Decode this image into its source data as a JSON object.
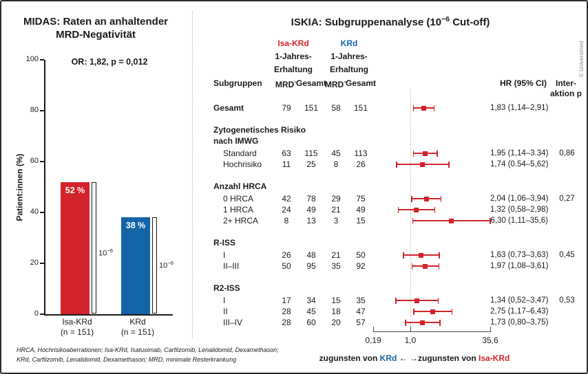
{
  "copyright": "© Universimed",
  "colors": {
    "red": "#d2232a",
    "blue": "#1464a8"
  },
  "left": {
    "title1": "MIDAS: Raten an anhaltender",
    "title2": "MRD-Negativität",
    "stat": "OR: 1,82, p = 0,012",
    "ylabel": "Patient:innen (%)"
  },
  "right": {
    "title_pre": "ISKIA: Subgruppenanalyse (10",
    "title_exp": "−6",
    "title_post": " Cut-off)",
    "arms": [
      {
        "name": "Isa-KRd",
        "sub1": "1-Jahres-",
        "sub2": "Erhaltung",
        "color": "#d2232a"
      },
      {
        "name": "KRd",
        "sub1": "1-Jahres-",
        "sub2": "Erhaltung",
        "color": "#1464a8"
      }
    ],
    "headers": {
      "subgroup": "Subgruppen",
      "mrd": "MRD",
      "mrd_sup": "−",
      "total": "Gesamt",
      "hr": "HR (95% CI)",
      "inter1": "Inter-",
      "inter2": "aktion p"
    },
    "legend": {
      "t1": "zugunsten von ",
      "arm_b": "KRd",
      "t2": " ← →",
      "t3": "zugunsten von ",
      "arm_a": "Isa-KRd"
    }
  },
  "footnote": {
    "line1": "HRCA, Hochrisikoaberrationen; Isa-KRd, Isatuximab, Carfilzomib, Lenalidomid, Dexamethason;",
    "line2": "KRd, Carfilzomib, Lenalidomid, Dexamethason; MRD, minimale Resterkrankung"
  },
  "chart_data": [
    {
      "type": "bar",
      "title": "MIDAS: Raten an anhaltender MRD-Negativität",
      "annotation": "OR: 1,82, p = 0,012",
      "categories": [
        "Isa-KRd",
        "KRd"
      ],
      "category_sublabels": [
        "(n = 151)",
        "(n = 151)"
      ],
      "values": [
        52,
        38
      ],
      "bar_labels": [
        "52 %",
        "38 %"
      ],
      "bar_colors": [
        "#d2232a",
        "#1464a8"
      ],
      "threshold_base": "10",
      "threshold_exp": "−6",
      "ylabel": "Patient:innen (%)",
      "ylim": [
        0,
        100
      ],
      "yticks": [
        0,
        20,
        40,
        60,
        80,
        100
      ],
      "grid": false
    },
    {
      "type": "forest",
      "title": "ISKIA: Subgruppenanalyse (10⁻⁶ Cut-off)",
      "arms": [
        "Isa-KRd 1-Jahres-Erhaltung",
        "KRd 1-Jahres-Erhaltung"
      ],
      "columns": [
        "Subgruppen",
        "MRD⁻",
        "Gesamt",
        "MRD⁻",
        "Gesamt",
        "HR (95% CI)",
        "Interaktion p"
      ],
      "x_scale": "log",
      "x_min": 0.19,
      "x_max": 35.6,
      "x_tick_values": [
        0.19,
        1.0,
        35.6
      ],
      "x_tick_labels": [
        "0,19",
        "1,0",
        "35,6"
      ],
      "favors_left": "zugunsten von KRd",
      "favors_right": "zugunsten von Isa-KRd",
      "rows": [
        {
          "type": "total",
          "label": "Gesamt",
          "mrd1": "79",
          "ges1": "151",
          "mrd2": "58",
          "ges2": "151",
          "hr": 1.83,
          "lo": 1.14,
          "hi": 2.91,
          "hr_text": "1,83 (1,14–2,91)",
          "p": ""
        },
        {
          "type": "group2",
          "label": "Zytogenetisches Risiko",
          "label2": "nach IMWG"
        },
        {
          "type": "item",
          "label": "Standard",
          "mrd1": "63",
          "ges1": "115",
          "mrd2": "45",
          "ges2": "113",
          "hr": 1.95,
          "lo": 1.14,
          "hi": 3.34,
          "hr_text": "1,95 (1,14–3.34)",
          "p": "0,86"
        },
        {
          "type": "item",
          "label": "Hochrisiko",
          "mrd1": "11",
          "ges1": "25",
          "mrd2": "8",
          "ges2": "26",
          "hr": 1.74,
          "lo": 0.54,
          "hi": 5.62,
          "hr_text": "1,74 (0.54–5,62)",
          "p": ""
        },
        {
          "type": "group",
          "label": "Anzahl HRCA"
        },
        {
          "type": "item",
          "label": "0 HRCA",
          "mrd1": "42",
          "ges1": "78",
          "mrd2": "29",
          "ges2": "75",
          "hr": 2.04,
          "lo": 1.06,
          "hi": 3.94,
          "hr_text": "2,04 (1,06–3,94)",
          "p": "0,27"
        },
        {
          "type": "item",
          "label": "1 HRCA",
          "mrd1": "24",
          "ges1": "49",
          "mrd2": "21",
          "ges2": "49",
          "hr": 1.32,
          "lo": 0.58,
          "hi": 2.98,
          "hr_text": "1,32 (0,58–2,98)",
          "p": ""
        },
        {
          "type": "item",
          "label": "2+ HRCA",
          "mrd1": "8",
          "ges1": "13",
          "mrd2": "3",
          "ges2": "15",
          "hr": 6.3,
          "lo": 1.11,
          "hi": 35.6,
          "hr_text": "6,30 (1,11–35,6)",
          "p": ""
        },
        {
          "type": "group",
          "label": "R-ISS"
        },
        {
          "type": "item",
          "label": "I",
          "mrd1": "26",
          "ges1": "48",
          "mrd2": "21",
          "ges2": "50",
          "hr": 1.63,
          "lo": 0.73,
          "hi": 3.63,
          "hr_text": "1,63 (0,73–3,63)",
          "p": "0,45"
        },
        {
          "type": "item",
          "label": "II–III",
          "mrd1": "50",
          "ges1": "95",
          "mrd2": "35",
          "ges2": "92",
          "hr": 1.97,
          "lo": 1.08,
          "hi": 3.61,
          "hr_text": "1,97 (1,08–3,61)",
          "p": ""
        },
        {
          "type": "group",
          "label": "R2-ISS"
        },
        {
          "type": "item",
          "label": "I",
          "mrd1": "17",
          "ges1": "34",
          "mrd2": "15",
          "ges2": "35",
          "hr": 1.34,
          "lo": 0.52,
          "hi": 3.47,
          "hr_text": "1,34 (0,52–3,47)",
          "p": "0,53"
        },
        {
          "type": "item",
          "label": "II",
          "mrd1": "28",
          "ges1": "45",
          "mrd2": "18",
          "ges2": "47",
          "hr": 2.75,
          "lo": 1.17,
          "hi": 6.43,
          "hr_text": "2,75 (1,17–6,43)",
          "p": ""
        },
        {
          "type": "item",
          "label": "III–IV",
          "mrd1": "28",
          "ges1": "60",
          "mrd2": "20",
          "ges2": "57",
          "hr": 1.73,
          "lo": 0.8,
          "hi": 3.75,
          "hr_text": "1,73 (0,80–3,75)",
          "p": ""
        }
      ]
    }
  ]
}
